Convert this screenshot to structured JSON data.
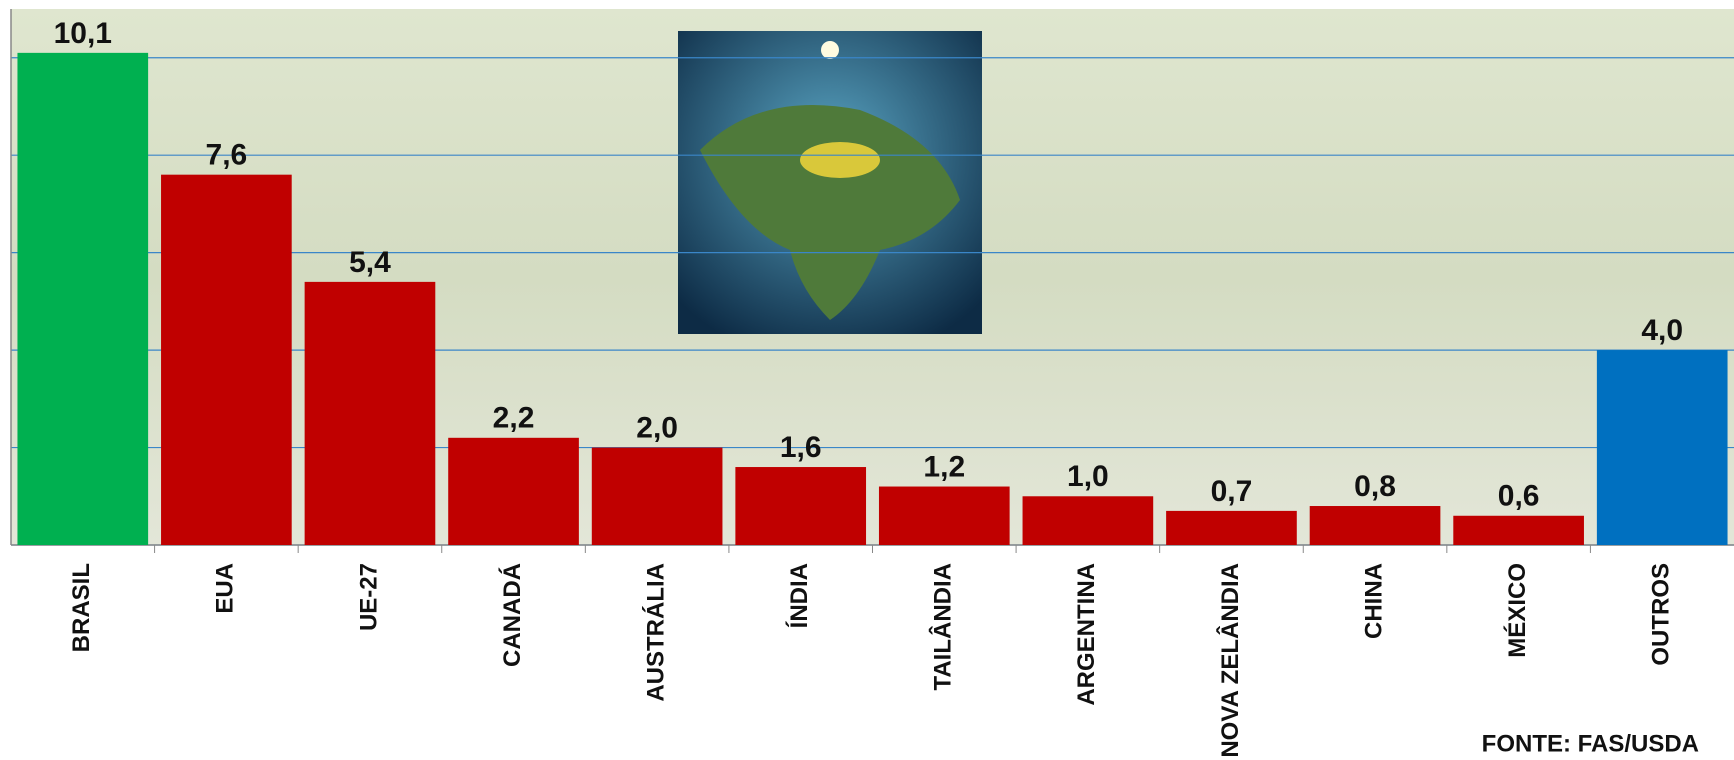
{
  "chart_data": {
    "type": "bar",
    "categories": [
      "BRASIL",
      "EUA",
      "UE-27",
      "CANADÁ",
      "AUSTRÁLIA",
      "ÍNDIA",
      "TAILÂNDIA",
      "ARGENTINA",
      "NOVA ZELÂNDIA",
      "CHINA",
      "MÉXICO",
      "OUTROS"
    ],
    "values": [
      10.1,
      7.6,
      5.4,
      2.2,
      2.0,
      1.6,
      1.2,
      1.0,
      0.7,
      0.8,
      0.6,
      4.0
    ],
    "value_labels": [
      "10,1",
      "7,6",
      "5,4",
      "2,2",
      "2,0",
      "1,6",
      "1,2",
      "1,0",
      "0,7",
      "0,8",
      "0,6",
      "4,0"
    ],
    "colors": [
      "#00b050",
      "#c00000",
      "#c00000",
      "#c00000",
      "#c00000",
      "#c00000",
      "#c00000",
      "#c00000",
      "#c00000",
      "#c00000",
      "#c00000",
      "#0070c0"
    ],
    "ylim": [
      0,
      11
    ],
    "yticks": [
      0,
      2,
      4,
      6,
      8,
      10
    ],
    "grid": true,
    "source": "FONTE: FAS/USDA"
  }
}
